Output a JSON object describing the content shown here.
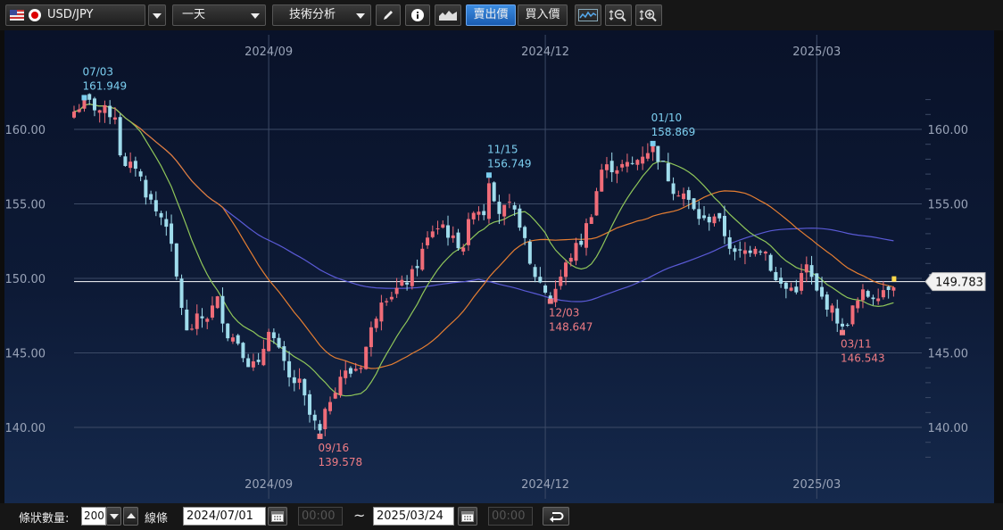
{
  "toolbar": {
    "symbol": "USD/JPY",
    "timeframe": "一天",
    "analysis": "技術分析",
    "sell_price": "賣出價",
    "buy_price": "買入價"
  },
  "colors": {
    "bg_top": "#091229",
    "bg_bottom": "#15294c",
    "up_candle": "#f06c78",
    "down_candle": "#9fdcec",
    "ma_short": "#8fc65a",
    "ma_mid": "#e57e32",
    "ma_long": "#5a5ad6",
    "high_marker": "#7ccff0",
    "low_marker": "#f07c84"
  },
  "chart_data": {
    "type": "candlestick",
    "symbol": "USD/JPY",
    "date_range": [
      "2024/07/01",
      "2025/03/24"
    ],
    "x_ticks": [
      "2024/09",
      "2024/12",
      "2025/03"
    ],
    "y_ticks": [
      "140.00",
      "145.00",
      "150.00",
      "155.00",
      "160.00"
    ],
    "y_range": [
      137.5,
      163.5
    ],
    "current_price": "149.783",
    "annotations": [
      {
        "date": "07/03",
        "value": "161.949",
        "kind": "high"
      },
      {
        "date": "09/16",
        "value": "139.578",
        "kind": "low"
      },
      {
        "date": "11/15",
        "value": "156.749",
        "kind": "high"
      },
      {
        "date": "12/03",
        "value": "148.647",
        "kind": "low"
      },
      {
        "date": "01/10",
        "value": "158.869",
        "kind": "high"
      },
      {
        "date": "03/11",
        "value": "146.543",
        "kind": "low"
      }
    ],
    "close_path": [
      [
        0,
        161.2
      ],
      [
        2,
        161.95
      ],
      [
        5,
        161.3
      ],
      [
        8,
        161.0
      ],
      [
        9,
        158.5
      ],
      [
        10,
        157.3
      ],
      [
        12,
        157.6
      ],
      [
        14,
        155.8
      ],
      [
        16,
        154.5
      ],
      [
        18,
        153.8
      ],
      [
        20,
        150.0
      ],
      [
        22,
        146.3
      ],
      [
        24,
        147.2
      ],
      [
        26,
        147.5
      ],
      [
        28,
        148.5
      ],
      [
        30,
        146.3
      ],
      [
        32,
        145.8
      ],
      [
        34,
        144.4
      ],
      [
        36,
        144.0
      ],
      [
        38,
        146.8
      ],
      [
        40,
        145.0
      ],
      [
        42,
        143.2
      ],
      [
        44,
        142.9
      ],
      [
        46,
        140.8
      ],
      [
        48,
        139.6
      ],
      [
        50,
        142.0
      ],
      [
        52,
        143.5
      ],
      [
        54,
        143.7
      ],
      [
        56,
        144.3
      ],
      [
        58,
        146.5
      ],
      [
        60,
        148.8
      ],
      [
        62,
        149.0
      ],
      [
        64,
        149.5
      ],
      [
        66,
        150.2
      ],
      [
        68,
        151.8
      ],
      [
        70,
        153.3
      ],
      [
        72,
        153.6
      ],
      [
        74,
        152.5
      ],
      [
        76,
        152.3
      ],
      [
        78,
        154.8
      ],
      [
        80,
        154.5
      ],
      [
        81,
        156.75
      ],
      [
        83,
        154.5
      ],
      [
        85,
        154.7
      ],
      [
        87,
        153.8
      ],
      [
        89,
        150.8
      ],
      [
        91,
        149.7
      ],
      [
        93,
        148.65
      ],
      [
        95,
        150.1
      ],
      [
        97,
        151.6
      ],
      [
        99,
        152.5
      ],
      [
        101,
        154.5
      ],
      [
        103,
        157.3
      ],
      [
        105,
        157.5
      ],
      [
        107,
        157.5
      ],
      [
        109,
        157.6
      ],
      [
        111,
        158.4
      ],
      [
        113,
        158.87
      ],
      [
        115,
        157.5
      ],
      [
        117,
        156.1
      ],
      [
        119,
        155.7
      ],
      [
        121,
        154.5
      ],
      [
        123,
        153.8
      ],
      [
        125,
        154.3
      ],
      [
        127,
        153.0
      ],
      [
        129,
        151.5
      ],
      [
        131,
        151.8
      ],
      [
        133,
        152.3
      ],
      [
        135,
        151.8
      ],
      [
        137,
        149.8
      ],
      [
        139,
        149.3
      ],
      [
        141,
        149.4
      ],
      [
        143,
        150.8
      ],
      [
        145,
        149.0
      ],
      [
        147,
        148.3
      ],
      [
        149,
        147.3
      ],
      [
        150,
        146.5
      ],
      [
        152,
        147.9
      ],
      [
        154,
        148.9
      ],
      [
        156,
        148.9
      ],
      [
        158,
        149.3
      ],
      [
        160,
        149.78
      ]
    ]
  },
  "bottom": {
    "count_label": "條狀數量:",
    "count_value": "200",
    "line_label": "線條",
    "start_date": "2024/07/01",
    "start_time": "00:00",
    "tilde": "~",
    "end_date": "2025/03/24",
    "end_time": "00:00"
  }
}
